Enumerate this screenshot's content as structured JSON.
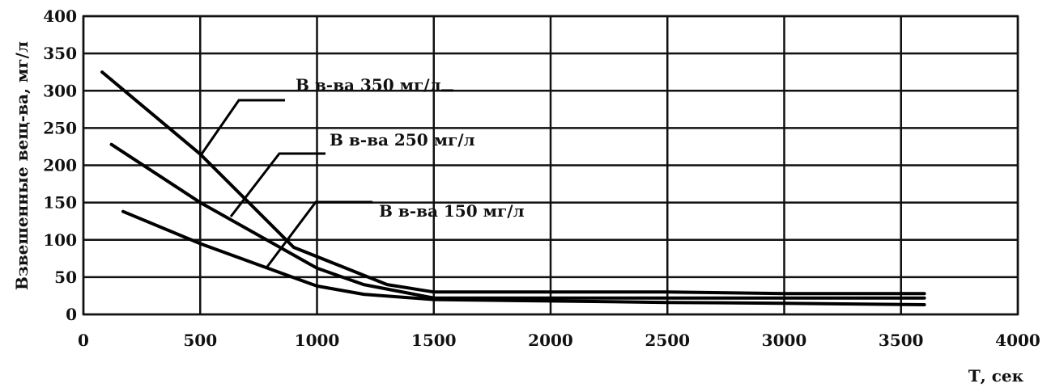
{
  "chart_data": {
    "type": "line",
    "title": "",
    "xlabel": "Т, сек",
    "ylabel": "Взвешенные вещ-ва, мг/л",
    "xlim": [
      0,
      4000
    ],
    "ylim": [
      0,
      400
    ],
    "x_ticks": [
      0,
      500,
      1000,
      1500,
      2000,
      2500,
      3000,
      3500,
      4000
    ],
    "y_ticks": [
      0,
      50,
      100,
      150,
      200,
      250,
      300,
      350,
      400
    ],
    "grid": true,
    "legend": "none",
    "series": [
      {
        "name": "В в-ва 350 мг/л",
        "x": [
          80,
          500,
          900,
          1300,
          1500,
          2000,
          2500,
          3000,
          3600
        ],
        "y": [
          325,
          215,
          90,
          40,
          30,
          30,
          30,
          28,
          28
        ]
      },
      {
        "name": "В в-ва 250 мг/л",
        "x": [
          120,
          500,
          1000,
          1200,
          1500,
          2000,
          2500,
          3000,
          3600
        ],
        "y": [
          228,
          150,
          62,
          40,
          22,
          22,
          22,
          22,
          22
        ]
      },
      {
        "name": "В в-ва 150 мг/л",
        "x": [
          170,
          500,
          1000,
          1200,
          1500,
          2000,
          2500,
          3000,
          3600
        ],
        "y": [
          138,
          95,
          38,
          27,
          20,
          18,
          16,
          15,
          13
        ]
      }
    ]
  }
}
